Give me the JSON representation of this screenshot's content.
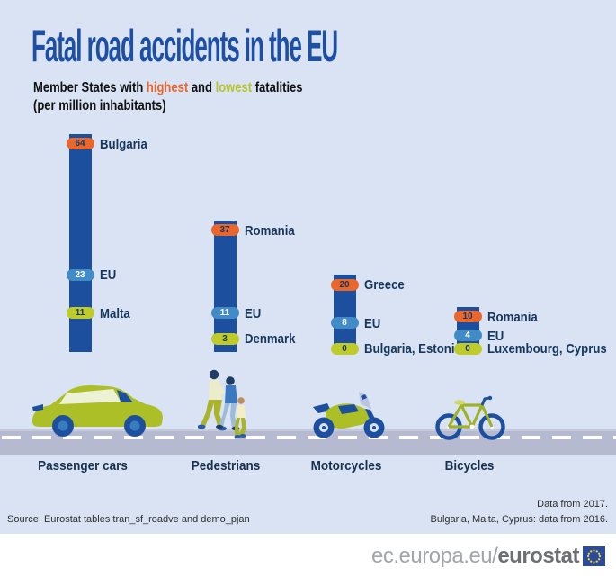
{
  "title": "Fatal road accidents in the EU",
  "subtitle": {
    "part1": "Member States with ",
    "highest_word": "highest",
    "part2": " and ",
    "lowest_word": "lowest",
    "part3": " fatalities",
    "line2": "(per million inhabitants)"
  },
  "colors": {
    "background": "#d9e3f4",
    "bar": "#1d4f9f",
    "highest": "#e9662c",
    "eu": "#418bc6",
    "lowest": "#bfcb2b",
    "title_blue": "#1d4fa3",
    "label_navy": "#17365c",
    "road": "#b5bad1",
    "flag_blue": "#2a4b9e",
    "flag_stars": "#ffd617"
  },
  "chart_data": {
    "type": "bar",
    "title": "Fatal road accidents in the EU",
    "subtitle": "Member States with highest and lowest fatalities (per million inhabitants)",
    "unit": "fatalities per million inhabitants",
    "categories": [
      "Passenger cars",
      "Pedestrians",
      "Motorcycles",
      "Bicycles"
    ],
    "series": [
      {
        "name": "highest",
        "color": "#e9662c",
        "values": [
          64,
          37,
          20,
          10
        ],
        "labels": [
          "Bulgaria",
          "Romania",
          "Greece",
          "Romania"
        ]
      },
      {
        "name": "eu",
        "color": "#418bc6",
        "values": [
          23,
          11,
          8,
          4
        ],
        "labels": [
          "EU",
          "EU",
          "EU",
          "EU"
        ]
      },
      {
        "name": "lowest",
        "color": "#bfcb2b",
        "values": [
          11,
          3,
          0,
          0
        ],
        "labels": [
          "Malta",
          "Denmark",
          "Bulgaria, Estonia",
          "Luxembourg, Cyprus"
        ]
      }
    ],
    "ylim": [
      0,
      64
    ],
    "grid": false,
    "legend_position": "none"
  },
  "icons": {
    "car": "passenger-car-icon",
    "pedestrians": "pedestrians-icon",
    "motorcycle": "motorcycle-icon",
    "bicycle": "bicycle-icon",
    "flag": "eu-flag-icon"
  },
  "notes": {
    "source": "Source: Eurostat tables tran_sf_roadve and demo_pjan",
    "note1": "Data from 2017.",
    "note2": "Bulgaria, Malta, Cyprus: data from 2016."
  },
  "footer": {
    "url_prefix": "ec.europa.eu/",
    "url_bold": "eurostat"
  }
}
